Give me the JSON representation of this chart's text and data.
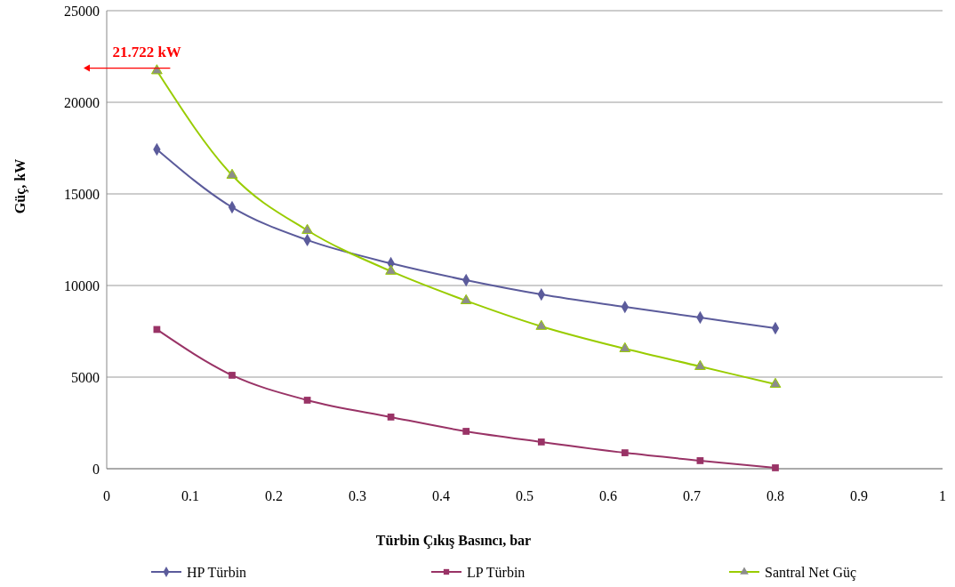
{
  "chart_data": {
    "type": "line",
    "xlabel": "Türbin Çıkış Basıncı, bar",
    "ylabel": "Güç, kW",
    "x": [
      0.06,
      0.15,
      0.24,
      0.34,
      0.43,
      0.52,
      0.62,
      0.71,
      0.8
    ],
    "series": [
      {
        "name": "HP Türbin",
        "color": "#5b5b9b",
        "marker": "diamond",
        "values": [
          17430,
          14270,
          12480,
          11210,
          10290,
          9510,
          8830,
          8250,
          7670
        ]
      },
      {
        "name": "LP Türbin",
        "color": "#993366",
        "marker": "square",
        "values": [
          7600,
          5100,
          3740,
          2820,
          2040,
          1460,
          870,
          440,
          50
        ]
      },
      {
        "name": "Santral Net Güç",
        "color": "#99cc00",
        "marker": "triangle",
        "values": [
          21722,
          16020,
          13010,
          10780,
          9170,
          7770,
          6550,
          5580,
          4610
        ]
      }
    ],
    "xlim": [
      0,
      1
    ],
    "xticks": [
      0,
      0.1,
      0.2,
      0.3,
      0.4,
      0.5,
      0.6,
      0.7,
      0.8,
      0.9,
      1
    ],
    "ylim": [
      0,
      25000
    ],
    "yticks": [
      0,
      5000,
      10000,
      15000,
      20000,
      25000
    ],
    "grid": "y",
    "legend": "bottom",
    "line_style": "solid",
    "annotations": [
      {
        "text": "21.722 kW",
        "x": 0.06,
        "y": 21722
      }
    ]
  }
}
